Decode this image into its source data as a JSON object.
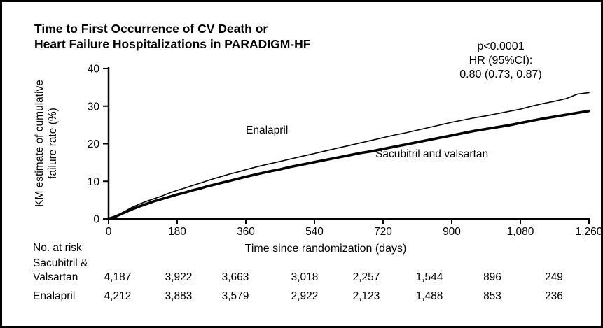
{
  "title": {
    "line1": "Time to First Occurrence of CV Death or",
    "line2": "Heart Failure Hospitalizations in PARADIGM-HF"
  },
  "stats": {
    "p_value": "p<0.0001",
    "hr_label": "HR (95%CI):",
    "hr_value": "0.80 (0.73, 0.87)"
  },
  "chart_data": {
    "type": "line",
    "title": "Time to First Occurrence of CV Death or Heart Failure Hospitalizations in PARADIGM-HF",
    "xlabel": "Time since randomization (days)",
    "ylabel_line1": "KM estimate of cumulative",
    "ylabel_line2": "failure rate (%)",
    "xlim": [
      0,
      1260
    ],
    "ylim": [
      0,
      40
    ],
    "x_tick_values": [
      0,
      180,
      360,
      540,
      720,
      900,
      1080,
      1260
    ],
    "x_tick_labels": [
      "0",
      "180",
      "360",
      "540",
      "720",
      "900",
      "1,080",
      "1,260"
    ],
    "y_tick_values": [
      0,
      10,
      20,
      30,
      40
    ],
    "y_tick_labels": [
      "0",
      "10",
      "20",
      "30",
      "40"
    ],
    "grid": false,
    "legend_position": "inline-labels",
    "annotation": "p<0.0001; HR (95%CI): 0.80 (0.73, 0.87)",
    "series": [
      {
        "name": "Enalapril",
        "stroke_width": 1.6,
        "points": [
          [
            0,
            0
          ],
          [
            20,
            0.8
          ],
          [
            40,
            1.9
          ],
          [
            60,
            3.0
          ],
          [
            80,
            3.9
          ],
          [
            100,
            4.7
          ],
          [
            120,
            5.4
          ],
          [
            140,
            6.1
          ],
          [
            160,
            6.9
          ],
          [
            180,
            7.6
          ],
          [
            200,
            8.2
          ],
          [
            220,
            8.9
          ],
          [
            240,
            9.5
          ],
          [
            260,
            10.2
          ],
          [
            280,
            10.8
          ],
          [
            300,
            11.4
          ],
          [
            320,
            12.0
          ],
          [
            340,
            12.5
          ],
          [
            360,
            13.1
          ],
          [
            390,
            13.9
          ],
          [
            420,
            14.6
          ],
          [
            450,
            15.3
          ],
          [
            480,
            16.0
          ],
          [
            510,
            16.7
          ],
          [
            540,
            17.4
          ],
          [
            570,
            18.1
          ],
          [
            600,
            18.8
          ],
          [
            630,
            19.5
          ],
          [
            660,
            20.2
          ],
          [
            690,
            20.9
          ],
          [
            720,
            21.6
          ],
          [
            750,
            22.3
          ],
          [
            780,
            22.9
          ],
          [
            810,
            23.6
          ],
          [
            840,
            24.3
          ],
          [
            870,
            25.0
          ],
          [
            900,
            25.7
          ],
          [
            930,
            26.3
          ],
          [
            960,
            26.9
          ],
          [
            990,
            27.4
          ],
          [
            1020,
            28.0
          ],
          [
            1050,
            28.6
          ],
          [
            1080,
            29.2
          ],
          [
            1110,
            30.0
          ],
          [
            1140,
            30.7
          ],
          [
            1170,
            31.3
          ],
          [
            1200,
            32.0
          ],
          [
            1230,
            33.2
          ],
          [
            1260,
            33.6
          ]
        ]
      },
      {
        "name": "Sacubitril and valsartan",
        "stroke_width": 3.6,
        "points": [
          [
            0,
            0
          ],
          [
            20,
            0.7
          ],
          [
            40,
            1.6
          ],
          [
            60,
            2.5
          ],
          [
            80,
            3.3
          ],
          [
            100,
            4.0
          ],
          [
            120,
            4.7
          ],
          [
            140,
            5.3
          ],
          [
            160,
            5.9
          ],
          [
            180,
            6.5
          ],
          [
            200,
            7.0
          ],
          [
            220,
            7.6
          ],
          [
            240,
            8.1
          ],
          [
            260,
            8.7
          ],
          [
            280,
            9.2
          ],
          [
            300,
            9.7
          ],
          [
            320,
            10.2
          ],
          [
            340,
            10.7
          ],
          [
            360,
            11.2
          ],
          [
            390,
            11.9
          ],
          [
            420,
            12.6
          ],
          [
            450,
            13.2
          ],
          [
            480,
            13.9
          ],
          [
            510,
            14.5
          ],
          [
            540,
            15.1
          ],
          [
            570,
            15.7
          ],
          [
            600,
            16.3
          ],
          [
            630,
            16.9
          ],
          [
            660,
            17.5
          ],
          [
            690,
            18.0
          ],
          [
            720,
            18.6
          ],
          [
            750,
            19.2
          ],
          [
            780,
            19.8
          ],
          [
            810,
            20.4
          ],
          [
            840,
            21.0
          ],
          [
            870,
            21.6
          ],
          [
            900,
            22.2
          ],
          [
            930,
            22.8
          ],
          [
            960,
            23.4
          ],
          [
            990,
            23.9
          ],
          [
            1020,
            24.4
          ],
          [
            1050,
            24.9
          ],
          [
            1080,
            25.5
          ],
          [
            1110,
            26.1
          ],
          [
            1140,
            26.7
          ],
          [
            1170,
            27.2
          ],
          [
            1200,
            27.7
          ],
          [
            1230,
            28.2
          ],
          [
            1260,
            28.7
          ]
        ]
      }
    ]
  },
  "risk_table": {
    "header": "No. at risk",
    "rows": [
      {
        "label_line1": "Sacubitril &",
        "label_line2": "Valsartan",
        "values": [
          "4,187",
          "3,922",
          "3,663",
          "3,018",
          "2,257",
          "1,544",
          "896",
          "249"
        ]
      },
      {
        "label_line1": "Enalapril",
        "label_line2": "",
        "values": [
          "4,212",
          "3,883",
          "3,579",
          "2,922",
          "2,123",
          "1,488",
          "853",
          "236"
        ]
      }
    ]
  },
  "colors": {
    "line": "#000000",
    "background": "#ffffff",
    "frame": "#000000"
  }
}
